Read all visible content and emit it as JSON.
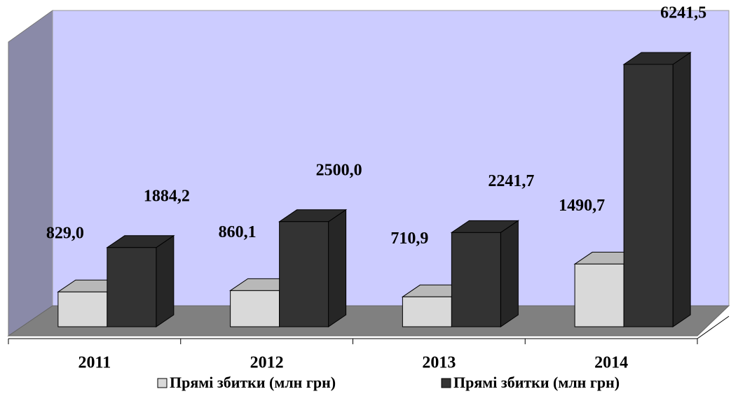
{
  "chart_data": {
    "type": "bar3d",
    "categories": [
      "2011",
      "2012",
      "2013",
      "2014"
    ],
    "series": [
      {
        "name": "Прямі збитки (млн грн)",
        "color": "#d9d9d9",
        "values": [
          829.0,
          860.1,
          710.9,
          1490.7
        ],
        "value_labels": [
          "829,0",
          "860,1",
          "710,9",
          "1490,7"
        ]
      },
      {
        "name": "Прямі збитки (млн грн)",
        "color": "#333333",
        "values": [
          1884.2,
          2500.0,
          2241.7,
          6241.5
        ],
        "value_labels": [
          "1884,2",
          "2500,0",
          "2241,7",
          "6241,5"
        ]
      }
    ]
  }
}
